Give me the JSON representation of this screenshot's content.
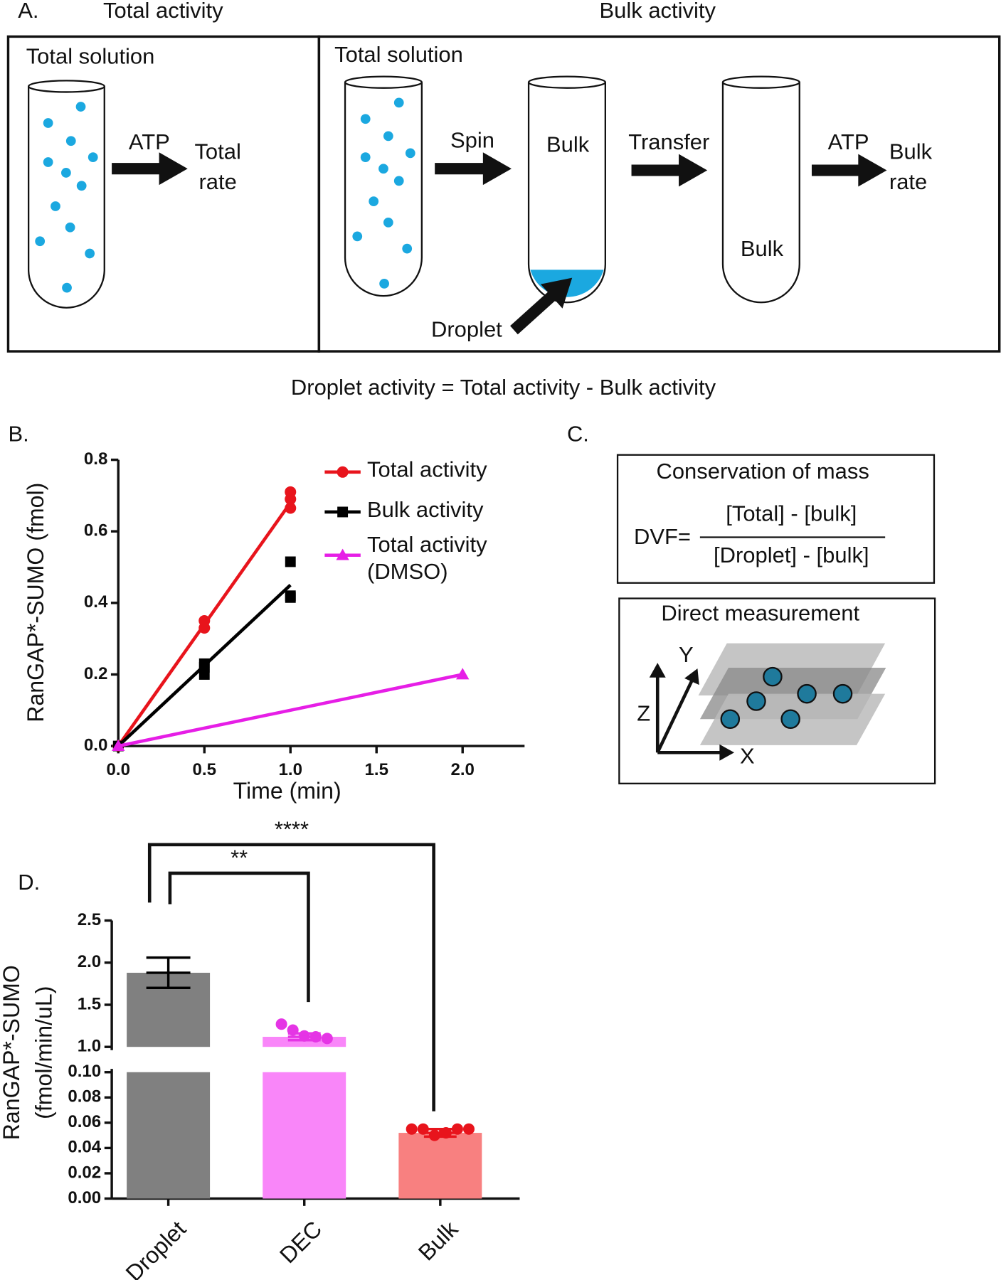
{
  "panel_a": {
    "label": "A.",
    "total_title": "Total activity",
    "bulk_title": "Bulk activity",
    "left": {
      "solution": "Total solution",
      "arrow": "ATP",
      "result": "Total rate"
    },
    "right": {
      "solution": "Total solution",
      "spin": "Spin",
      "tube2": "Bulk",
      "transfer": "Transfer",
      "tube3": "Bulk",
      "arrow": "ATP",
      "result": "Bulk rate",
      "droplet": "Droplet"
    },
    "equation": "Droplet activity = Total activity - Bulk activity"
  },
  "panel_c": {
    "label": "C.",
    "box1_title": "Conservation of mass",
    "lhs": "DVF=",
    "numerator": "[Total] - [bulk]",
    "denominator": "[Droplet] - [bulk]",
    "box2_title": "Direct measurement",
    "axes": [
      "Y",
      "Z",
      "X"
    ]
  },
  "chart_data": [
    {
      "type": "line",
      "panel": "B.",
      "xlabel": "Time (min)",
      "ylabel": "RanGAP*-SUMO (fmol)",
      "xlim": [
        0,
        2.36
      ],
      "ylim": [
        0,
        0.8
      ],
      "xticks": [
        {
          "value": 0,
          "label": "0.0"
        },
        0.5,
        {
          "value": 1,
          "label": "1.0"
        },
        1.5,
        {
          "value": 2,
          "label": "2.0"
        }
      ],
      "yticks": [
        {
          "value": 0,
          "label": "0.0"
        },
        0.2,
        0.4,
        0.6,
        0.8
      ],
      "series": [
        {
          "name": "Total activity",
          "color": "#e8141c",
          "marker": "circle",
          "x": [
            0,
            0.5,
            0.5,
            1,
            1,
            1
          ],
          "values": [
            0,
            0.35,
            0.33,
            0.71,
            0.69,
            0.665
          ],
          "fit_x": [
            0,
            1
          ],
          "fit_values": [
            0,
            0.68
          ]
        },
        {
          "name": "Bulk activity",
          "color": "#000000",
          "marker": "square",
          "x": [
            0,
            0.5,
            0.5,
            0.5,
            1,
            1,
            1
          ],
          "values": [
            0,
            0.23,
            0.2,
            0.22,
            0.515,
            0.42,
            0.415
          ],
          "fit_x": [
            0,
            1
          ],
          "fit_values": [
            0,
            0.45
          ]
        },
        {
          "name": "Total activity (DMSO)",
          "color": "#e61ee6",
          "marker": "triangle",
          "x": [
            0,
            2
          ],
          "values": [
            0,
            0.2
          ],
          "fit_x": [
            0,
            2
          ],
          "fit_values": [
            0,
            0.2
          ]
        }
      ]
    },
    {
      "type": "bar",
      "panel": "D.",
      "ylabel": [
        "RanGAP*-SUMO",
        "(fmol/min/uL)"
      ],
      "categories": [
        "Droplet",
        "DEC",
        "Bulk"
      ],
      "values": [
        1.88,
        1.12,
        0.052
      ],
      "errors": [
        0.18,
        0.04,
        0.003
      ],
      "colors": [
        "#808080",
        "#f986f9",
        "#f88080"
      ],
      "error_colors": [
        "#000000",
        "#e535e5",
        "#e8141c"
      ],
      "points": [
        [],
        [
          1.27,
          1.2,
          1.13,
          1.12,
          1.1
        ],
        [
          0.055,
          0.055,
          0.05,
          0.052,
          0.055,
          0.055
        ]
      ],
      "ylim_lower": [
        0,
        0.1
      ],
      "ylim_upper": [
        1,
        2.5
      ],
      "yticks_lower": [
        {
          "value": 0,
          "label": "0.00"
        },
        {
          "value": 0.02,
          "label": "0.02"
        },
        {
          "value": 0.04,
          "label": "0.04"
        },
        {
          "value": 0.06,
          "label": "0.06"
        },
        {
          "value": 0.08,
          "label": "0.08"
        },
        {
          "value": 0.1,
          "label": "0.10"
        }
      ],
      "yticks_upper": [
        {
          "value": 1,
          "label": "1.0"
        },
        1.5,
        {
          "value": 2,
          "label": "2.0"
        },
        2.5
      ],
      "significance": [
        {
          "from": 0,
          "to": 1,
          "label": "**"
        },
        {
          "from": 0,
          "to": 2,
          "label": "****"
        }
      ]
    }
  ]
}
